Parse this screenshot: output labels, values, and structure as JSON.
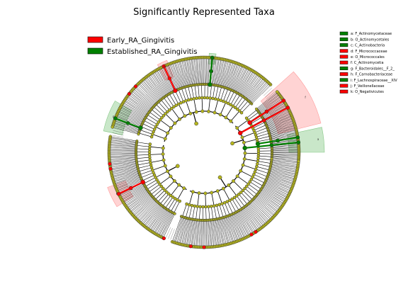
{
  "figure": {
    "title": "Significantly Represented Taxa"
  },
  "colors": {
    "early": "#ff0000",
    "established": "#008000",
    "node": "#b5b51d",
    "early_shade": "#ff9d9d",
    "established_shade": "#88c988"
  },
  "legend": [
    {
      "label": "Early_RA_Gingivitis",
      "color": "#ff0000"
    },
    {
      "label": "Established_RA_Gingivitis",
      "color": "#008000"
    }
  ],
  "taxa_key": [
    {
      "label": "a: F_Actinomycetaceae",
      "group": "established"
    },
    {
      "label": "b: O_Actinomycetales",
      "group": "established"
    },
    {
      "label": "c: C_Actinobacteria",
      "group": "established"
    },
    {
      "label": "d: F_Micrococcaceae",
      "group": "early"
    },
    {
      "label": "e: O_Micrococcales",
      "group": "early"
    },
    {
      "label": "f: C_Actinomycetia",
      "group": "early"
    },
    {
      "label": "g: F_Bacteroidales__F_2_",
      "group": "established"
    },
    {
      "label": "h: F_Carnobacteriaceae",
      "group": "early"
    },
    {
      "label": "i: F_Lachnospiraceae__XIV",
      "group": "established"
    },
    {
      "label": "j: F_Veillonellaceae",
      "group": "early"
    },
    {
      "label": "k: O_Negativicutes",
      "group": "early"
    }
  ],
  "clade_letters": [
    "a",
    "b",
    "c",
    "d",
    "e",
    "f",
    "g",
    "h",
    "i",
    "j",
    "k"
  ]
}
